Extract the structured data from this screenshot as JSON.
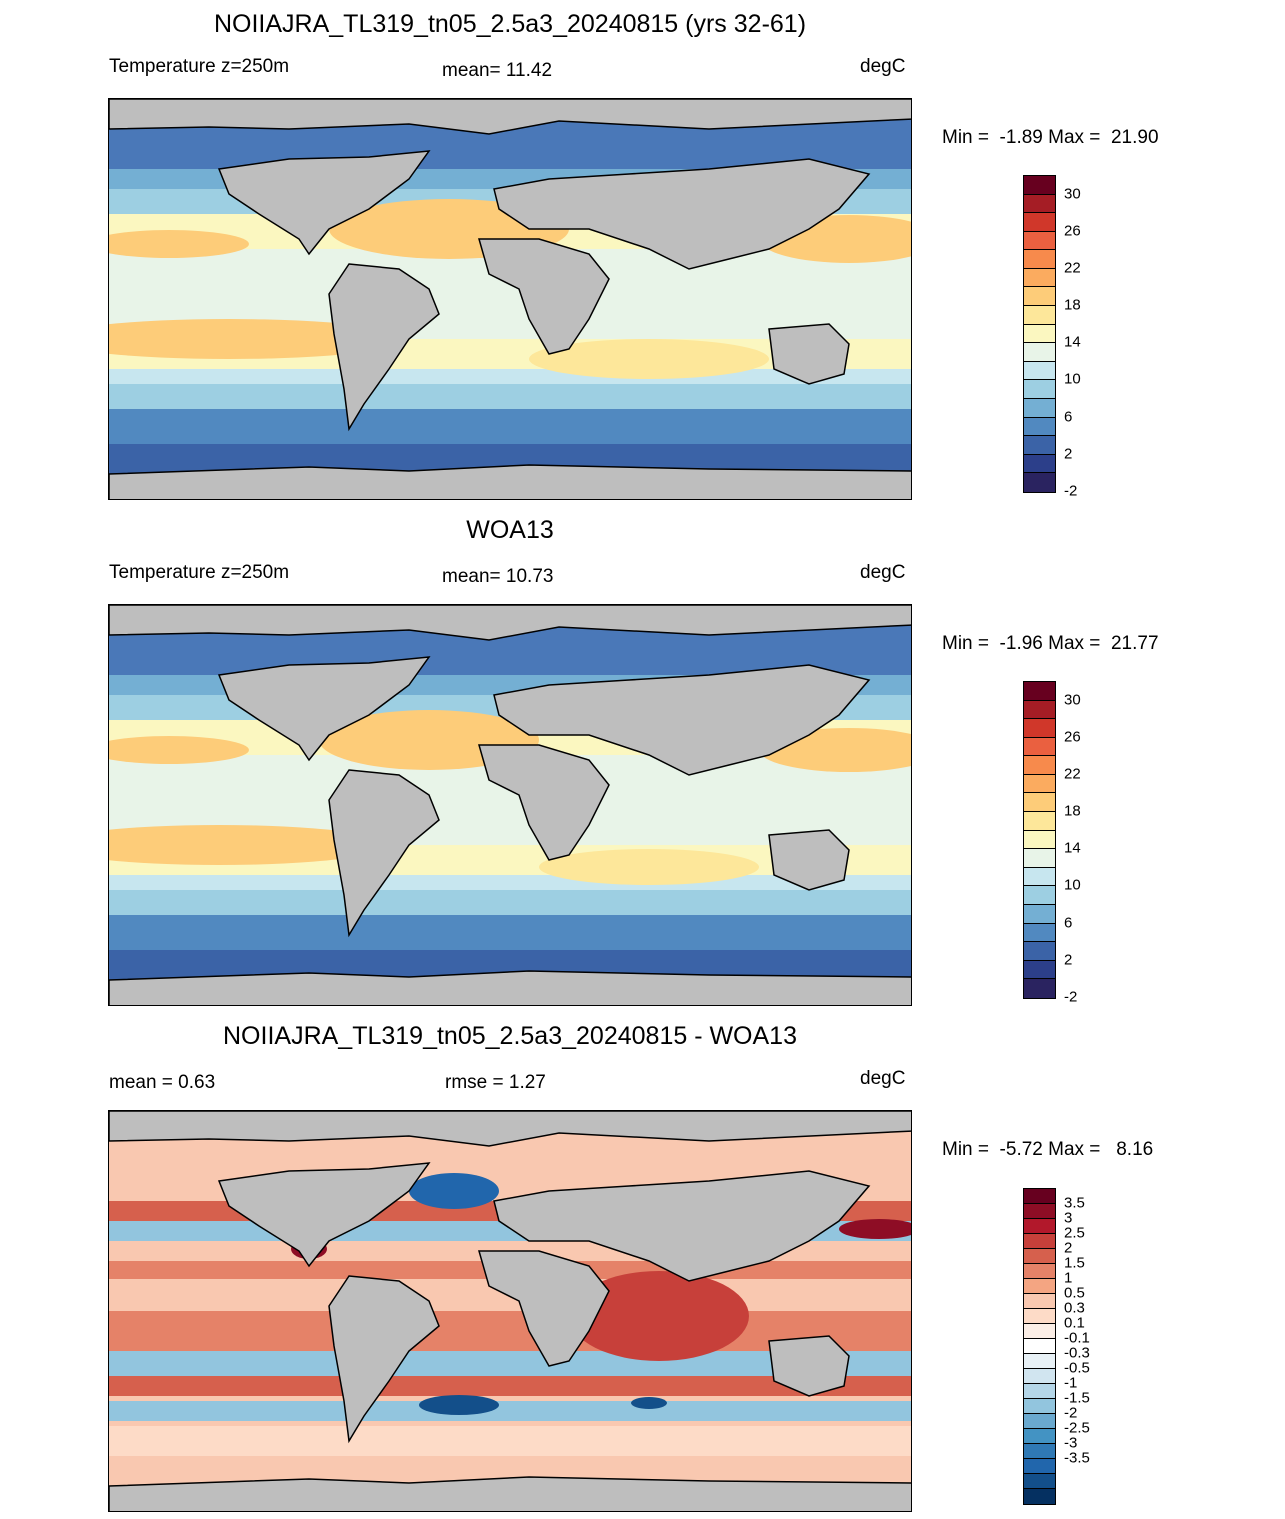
{
  "panels": [
    {
      "title": "NOIIAJRA_TL319_tn05_2.5a3_20240815 (yrs 32-61)",
      "left_label": "Temperature z=250m",
      "center_label": "mean=  11.42",
      "units": "degC",
      "minmax": "Min =  -1.89 Max =  21.90",
      "colorbar": {
        "colors": [
          "#67001f",
          "#a51d25",
          "#d0372a",
          "#ea6040",
          "#f78a4c",
          "#fbab5f",
          "#fdcc79",
          "#fde79a",
          "#fbf7c0",
          "#e8f4e8",
          "#c7e6ef",
          "#9dcfe2",
          "#74afd3",
          "#5189c0",
          "#3b63a7",
          "#2c3f8a",
          "#2a2360"
        ],
        "ticks": [
          "30",
          "26",
          "22",
          "18",
          "14",
          "10",
          "6",
          "2",
          "-2"
        ]
      }
    },
    {
      "title": "WOA13",
      "left_label": "Temperature z=250m",
      "center_label": "mean=  10.73",
      "units": "degC",
      "minmax": "Min =  -1.96 Max =  21.77",
      "colorbar": {
        "colors": [
          "#67001f",
          "#a51d25",
          "#d0372a",
          "#ea6040",
          "#f78a4c",
          "#fbab5f",
          "#fdcc79",
          "#fde79a",
          "#fbf7c0",
          "#e8f4e8",
          "#c7e6ef",
          "#9dcfe2",
          "#74afd3",
          "#5189c0",
          "#3b63a7",
          "#2c3f8a",
          "#2a2360"
        ],
        "ticks": [
          "30",
          "26",
          "22",
          "18",
          "14",
          "10",
          "6",
          "2",
          "-2"
        ]
      }
    },
    {
      "title": "NOIIAJRA_TL319_tn05_2.5a3_20240815 - WOA13",
      "left_label": "mean =   0.63",
      "center_label": "rmse =   1.27",
      "units": "degC",
      "minmax": "Min =  -5.72 Max =   8.16",
      "colorbar": {
        "colors": [
          "#67001f",
          "#8e0d25",
          "#b2182b",
          "#c7403a",
          "#d6604d",
          "#e58268",
          "#f4a582",
          "#f9c8b0",
          "#fddbc7",
          "#fbeee6",
          "#ffffff",
          "#e8f1f6",
          "#d1e5f0",
          "#b4d6e8",
          "#92c5de",
          "#6aa9cf",
          "#4393c3",
          "#2f79b5",
          "#2166ac",
          "#134f8a",
          "#053061"
        ],
        "ticks": [
          "3.5",
          "3",
          "2.5",
          "2",
          "1.5",
          "1",
          "0.5",
          "0.3",
          "0.1",
          "-0.1",
          "-0.3",
          "-0.5",
          "-1",
          "-1.5",
          "-2",
          "-2.5",
          "-3",
          "-3.5"
        ]
      }
    }
  ]
}
